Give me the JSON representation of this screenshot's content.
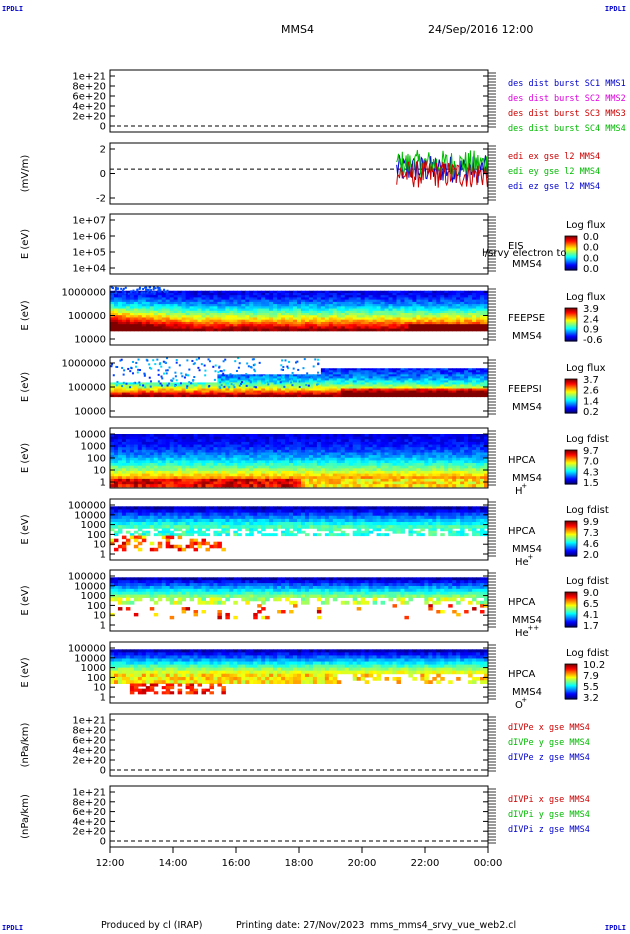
{
  "header": {
    "corner_tag": "IPDLI",
    "spacecraft": "MMS4",
    "datetime": "24/Sep/2016 12:00"
  },
  "footer": {
    "produced_by": "Produced by cl (IRAP)",
    "printing_date": "Printing date: 27/Nov/2023",
    "script": "mms_mms4_srvy_vue_web2.cl"
  },
  "x_axis": {
    "ticks": [
      "12:00",
      "14:00",
      "16:00",
      "18:00",
      "20:00",
      "22:00",
      "00:00"
    ]
  },
  "colors": {
    "red": "#cc0000",
    "magenta": "#dd00dd",
    "green": "#00bb00",
    "blue": "#0000cc"
  },
  "chart_data": [
    {
      "type": "line",
      "id": "des-dist",
      "ylabel": "",
      "ticks": [
        "1e+21",
        "8e+20",
        "6e+20",
        "4e+20",
        "2e+20",
        "0"
      ],
      "legend": [
        {
          "label": "des dist burst SC1 MMS1",
          "color": "#0000cc"
        },
        {
          "label": "des dist burst SC2 MMS2",
          "color": "#dd00dd"
        },
        {
          "label": "des dist burst SC3 MMS3",
          "color": "#cc0000"
        },
        {
          "label": "des dist burst SC4 MMS4",
          "color": "#00bb00"
        }
      ],
      "series": []
    },
    {
      "type": "line",
      "id": "edi-e",
      "ylabel": "(mV/m)",
      "ylim": [
        -4,
        3
      ],
      "ticks": [
        "2",
        "0",
        "-2"
      ],
      "x_range_hours": [
        21.1,
        24.0
      ],
      "legend": [
        {
          "label": "edi ex gse l2 MMS4",
          "color": "#cc0000"
        },
        {
          "label": "edi ey gse l2 MMS4",
          "color": "#00bb00"
        },
        {
          "label": "edi ez gse l2 MMS4",
          "color": "#0000cc"
        }
      ]
    },
    {
      "type": "heatmap",
      "id": "eis",
      "ylabel": "E (eV)",
      "ticks": [
        "1e+07",
        "1e+06",
        "1e+05",
        "1e+04"
      ],
      "instrument": "EIS",
      "overlay_text": "l/srvy electron to",
      "spacecraft": "MMS4",
      "colorbar_title": "Log flux",
      "colorbar_ticks": [
        "0.0",
        "0.0",
        "0.0",
        "0.0"
      ]
    },
    {
      "type": "heatmap",
      "id": "feepse",
      "ylabel": "E (eV)",
      "ticks": [
        "1000000",
        "100000",
        "10000"
      ],
      "instrument": "FEEPSE",
      "spacecraft": "MMS4",
      "colorbar_title": "Log flux",
      "colorbar_ticks": [
        "3.9",
        "2.4",
        "0.9",
        "-0.6"
      ]
    },
    {
      "type": "heatmap",
      "id": "feepsi",
      "ylabel": "E (eV)",
      "ticks": [
        "1000000",
        "100000",
        "10000"
      ],
      "instrument": "FEEPSI",
      "spacecraft": "MMS4",
      "colorbar_title": "Log flux",
      "colorbar_ticks": [
        "3.7",
        "2.6",
        "1.4",
        "0.2"
      ]
    },
    {
      "type": "heatmap",
      "id": "hpca-h",
      "ylabel": "E (eV)",
      "ticks": [
        "10000",
        "1000",
        "100",
        "10",
        "1"
      ],
      "instrument": "HPCA",
      "spacecraft": "MMS4",
      "species": "H",
      "species_sup": "+",
      "colorbar_title": "Log fdist",
      "colorbar_ticks": [
        "9.7",
        "7.0",
        "4.3",
        "1.5"
      ]
    },
    {
      "type": "heatmap",
      "id": "hpca-he",
      "ylabel": "E (eV)",
      "ticks": [
        "100000",
        "10000",
        "1000",
        "100",
        "10",
        "1"
      ],
      "instrument": "HPCA",
      "spacecraft": "MMS4",
      "species": "He",
      "species_sup": "+",
      "colorbar_title": "Log fdist",
      "colorbar_ticks": [
        "9.9",
        "7.3",
        "4.6",
        "2.0"
      ]
    },
    {
      "type": "heatmap",
      "id": "hpca-hepp",
      "ylabel": "E (eV)",
      "ticks": [
        "100000",
        "10000",
        "1000",
        "100",
        "10",
        "1"
      ],
      "instrument": "HPCA",
      "spacecraft": "MMS4",
      "species": "He",
      "species_sup": "++",
      "colorbar_title": "Log fdist",
      "colorbar_ticks": [
        "9.0",
        "6.5",
        "4.1",
        "1.7"
      ]
    },
    {
      "type": "heatmap",
      "id": "hpca-o",
      "ylabel": "E (eV)",
      "ticks": [
        "100000",
        "10000",
        "1000",
        "100",
        "10",
        "1"
      ],
      "instrument": "HPCA",
      "spacecraft": "MMS4",
      "species": "O",
      "species_sup": "+",
      "colorbar_title": "Log fdist",
      "colorbar_ticks": [
        "10.2",
        "7.9",
        "5.5",
        "3.2"
      ]
    },
    {
      "type": "line",
      "id": "divpe",
      "ylabel": "(nPa/km)",
      "ticks": [
        "1e+21",
        "8e+20",
        "6e+20",
        "4e+20",
        "2e+20",
        "0"
      ],
      "legend": [
        {
          "label": "dIVPe x gse MMS4",
          "color": "#cc0000"
        },
        {
          "label": "dIVPe y gse MMS4",
          "color": "#00bb00"
        },
        {
          "label": "dIVPe z gse MMS4",
          "color": "#0000cc"
        }
      ],
      "series": []
    },
    {
      "type": "line",
      "id": "divpi",
      "ylabel": "(nPa/km)",
      "ticks": [
        "1e+21",
        "8e+20",
        "6e+20",
        "4e+20",
        "2e+20",
        "0"
      ],
      "legend": [
        {
          "label": "dIVPi x gse MMS4",
          "color": "#cc0000"
        },
        {
          "label": "dIVPi y gse MMS4",
          "color": "#00bb00"
        },
        {
          "label": "dIVPi z gse MMS4",
          "color": "#0000cc"
        }
      ],
      "series": []
    }
  ]
}
